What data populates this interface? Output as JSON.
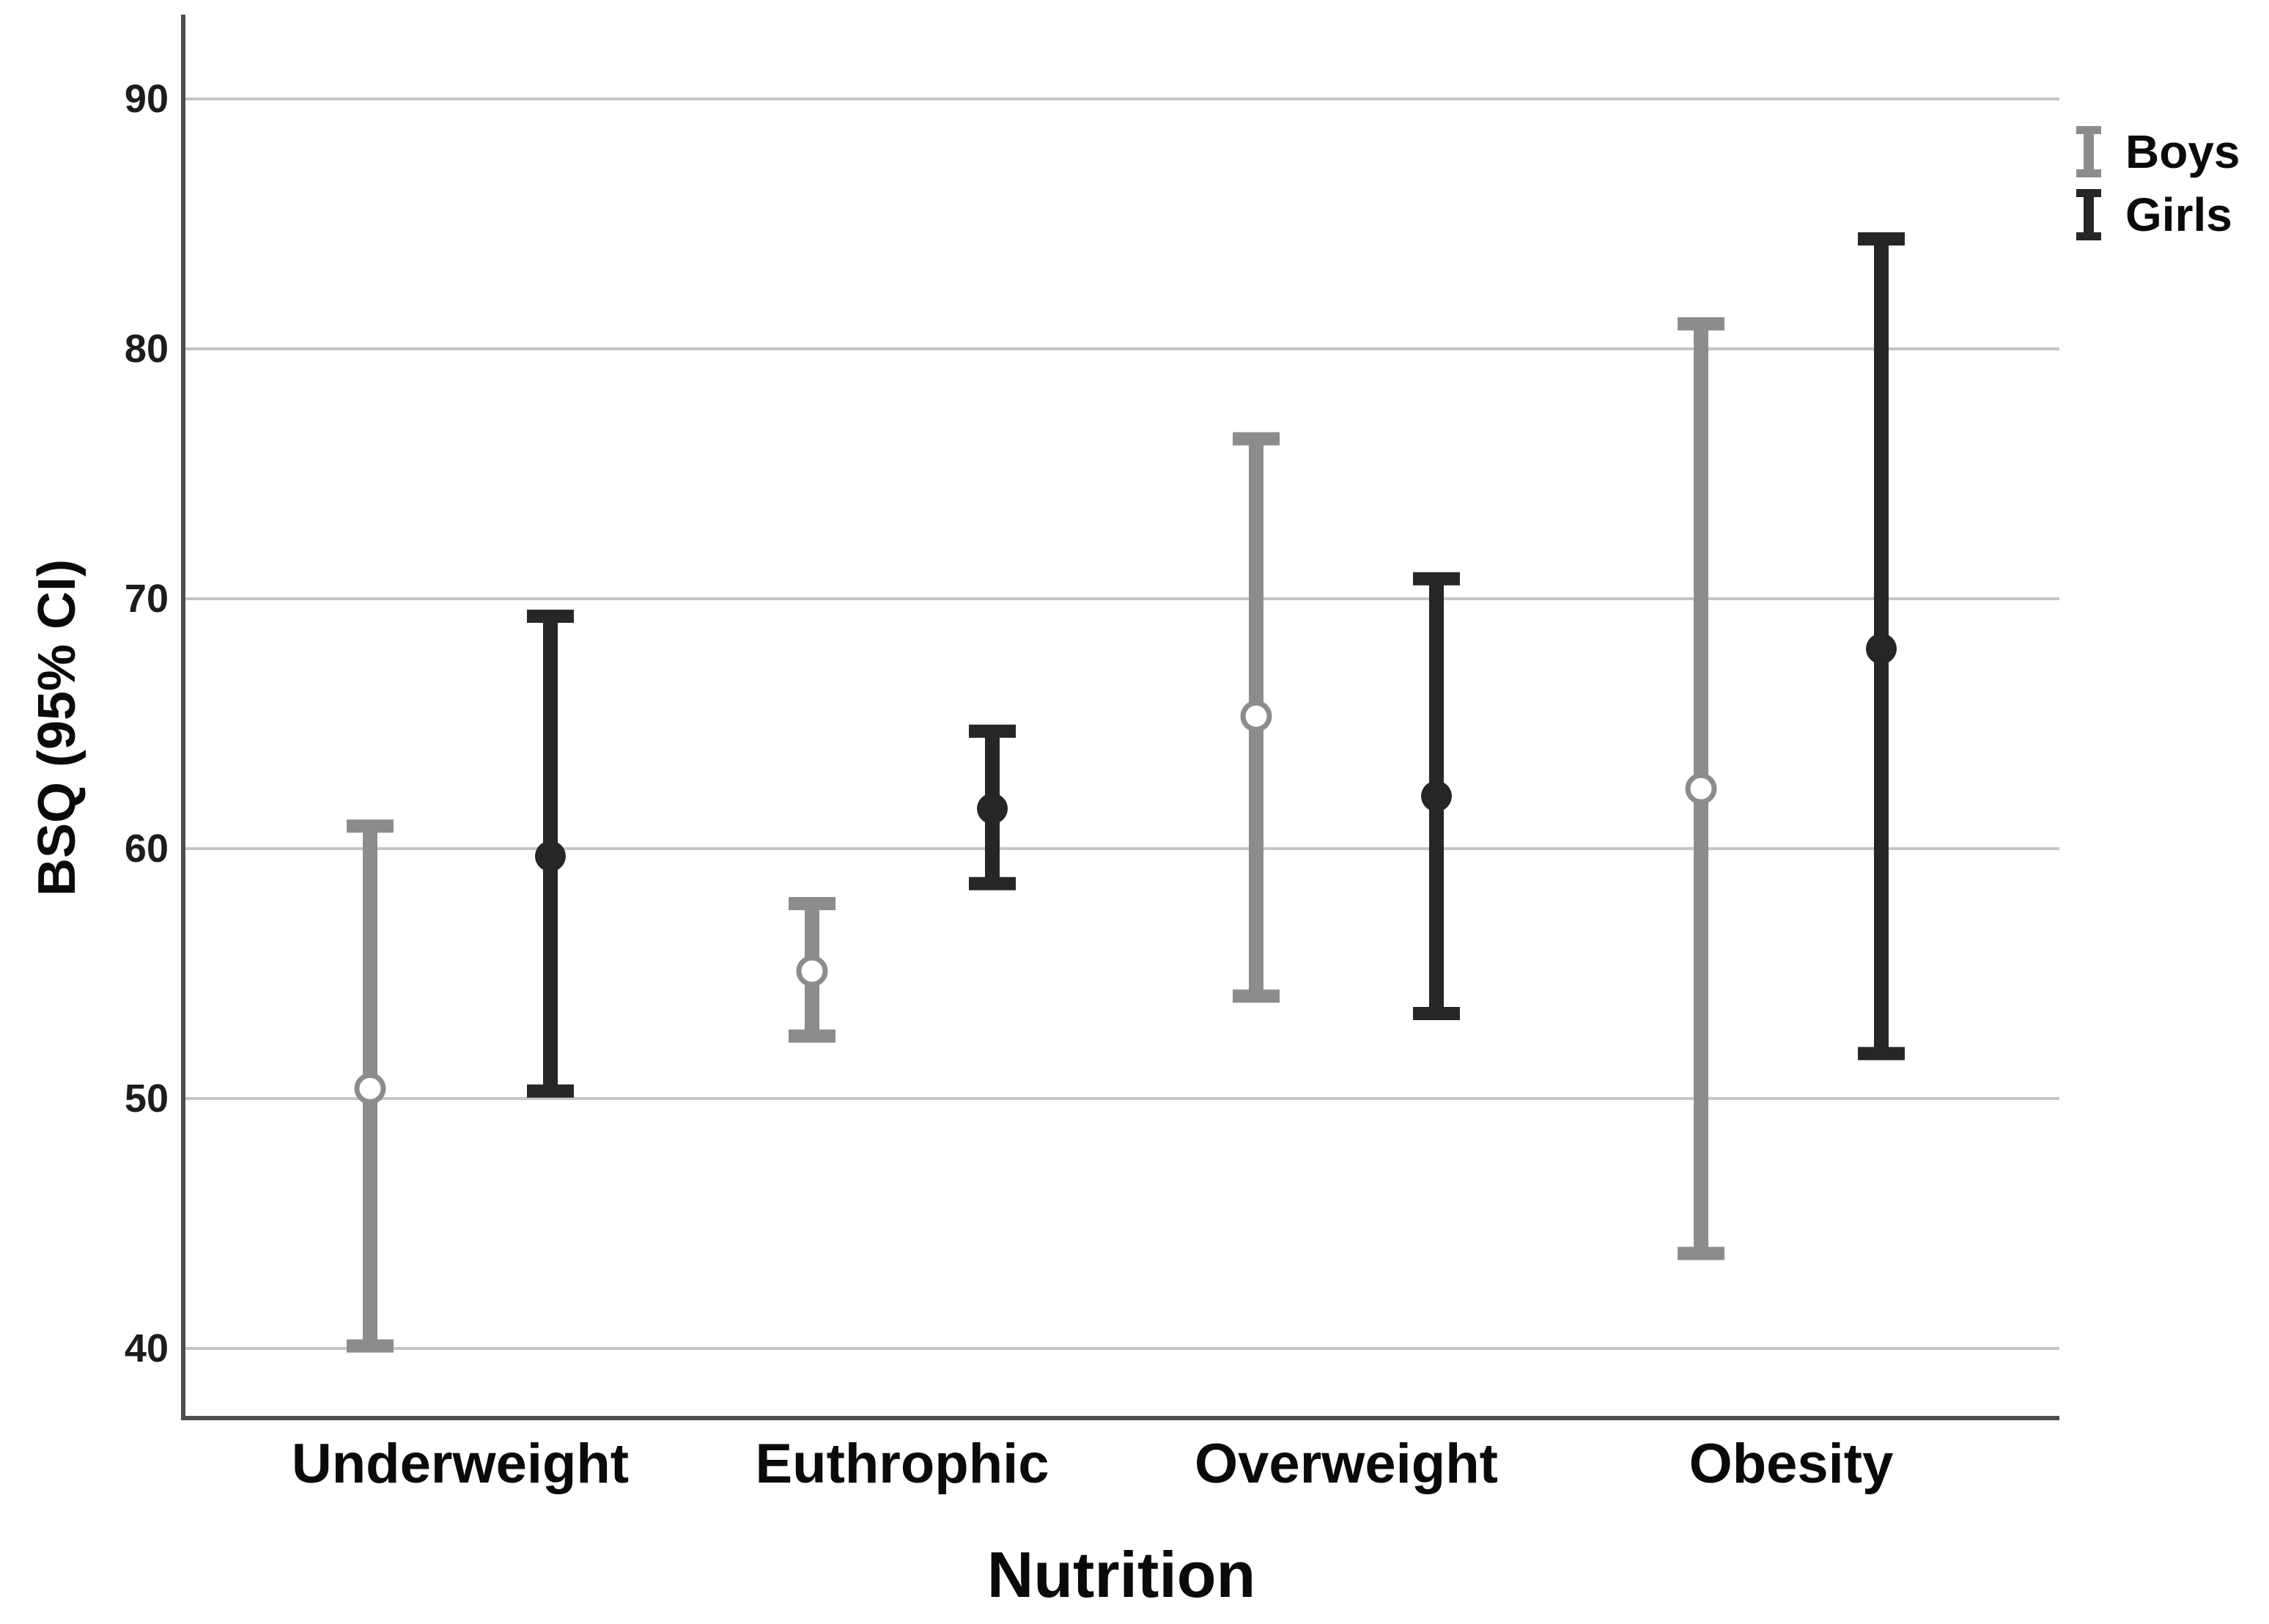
{
  "y_axis": {
    "label": "BSQ (95% CI)",
    "ticks": [
      "40",
      "50",
      "60",
      "70",
      "80",
      "90"
    ]
  },
  "x_axis": {
    "label": "Nutrition",
    "categories": [
      "Underweight",
      "Euthrophic",
      "Overweight",
      "Obesity"
    ]
  },
  "legend": {
    "items": [
      {
        "label": "Boys",
        "color": "#8c8c8c"
      },
      {
        "label": "Girls",
        "color": "#262626"
      }
    ]
  },
  "chart_data": {
    "type": "errorbar",
    "title": "",
    "xlabel": "Nutrition",
    "ylabel": "BSQ (95% CI)",
    "categories": [
      "Underweight",
      "Euthrophic",
      "Overweight",
      "Obesity"
    ],
    "y_ticks": [
      40,
      50,
      60,
      70,
      80,
      90
    ],
    "ylim": [
      37,
      93
    ],
    "grid": "horizontal",
    "legend_position": "top-right",
    "series": [
      {
        "name": "Boys",
        "color": "#8c8c8c",
        "marker": "open-circle",
        "means": [
          50.4,
          55.1,
          65.3,
          62.4
        ],
        "ci_low": [
          40.1,
          52.5,
          54.1,
          43.8
        ],
        "ci_high": [
          60.9,
          57.8,
          76.4,
          81.0
        ]
      },
      {
        "name": "Girls",
        "color": "#262626",
        "marker": "filled-circle",
        "means": [
          59.7,
          61.6,
          62.1,
          68.0
        ],
        "ci_low": [
          50.3,
          58.6,
          53.4,
          51.8
        ],
        "ci_high": [
          69.3,
          64.7,
          70.8,
          84.4
        ]
      }
    ]
  }
}
